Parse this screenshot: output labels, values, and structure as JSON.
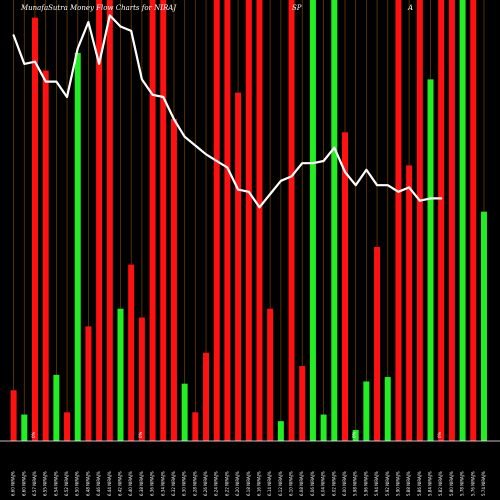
{
  "title": {
    "left": "MunafaSutra  Money Flow  Charts for NIRAJ",
    "middle": "SP",
    "right": "A"
  },
  "colors": {
    "background": "#000000",
    "up": "#22ee22",
    "down": "#ff1111",
    "grid": "#6b3a00",
    "line": "#ffffff"
  },
  "chart_data": {
    "type": "bar",
    "bar_heights_pct": [
      11.5,
      6,
      96,
      84,
      15,
      6.5,
      88,
      26,
      100,
      100,
      30,
      40,
      28,
      100,
      100,
      73,
      13,
      6.5,
      20,
      100,
      100,
      79,
      100,
      100,
      30,
      4.5,
      100,
      17,
      100,
      6,
      100,
      70,
      2.5,
      13.5,
      44,
      14.5,
      100,
      62.5,
      100,
      82,
      100,
      100,
      100,
      100,
      52
    ],
    "bar_colors": [
      "down",
      "up",
      "down",
      "down",
      "up",
      "down",
      "up",
      "down",
      "down",
      "down",
      "up",
      "down",
      "down",
      "down",
      "down",
      "down",
      "up",
      "down",
      "down",
      "down",
      "down",
      "down",
      "down",
      "down",
      "down",
      "up",
      "down",
      "down",
      "up",
      "up",
      "up",
      "down",
      "up",
      "up",
      "down",
      "up",
      "down",
      "down",
      "down",
      "up",
      "down",
      "down",
      "up",
      "down",
      "up"
    ],
    "line_pct": [
      92,
      85.5,
      86,
      81.5,
      81.5,
      78,
      89,
      95,
      85.5,
      96.5,
      94,
      93,
      82,
      78.5,
      78,
      73,
      69,
      67,
      65,
      63.5,
      62,
      57,
      56.5,
      53,
      56,
      59,
      60,
      63,
      63,
      63.5,
      66.5,
      61,
      58,
      61.5,
      58,
      58,
      56.5,
      57.5,
      54.5,
      55,
      55
    ],
    "pct_markers": [
      "0%",
      "0%",
      "0%",
      "0%"
    ],
    "x_labels": [
      "6.60 NIRAJ%",
      "6.60 NIRAJ%",
      "6.57 NIRAJ%",
      "6.55 NIRAJ%",
      "6.54 NIRAJ%",
      "6.52 NIRAJ%",
      "6.50 NIRAJ%",
      "6.48 NIRAJ%",
      "6.46 NIRAJ%",
      "6.44 NIRAJ%",
      "6.42 NIRAJ%",
      "6.40 NIRAJ%",
      "6.38 NIRAJ%",
      "6.36 NIRAJ%",
      "6.34 NIRAJ%",
      "6.32 NIRAJ%",
      "6.30 NIRAJ%",
      "6.28 NIRAJ%",
      "6.26 NIRAJ%",
      "6.24 NIRAJ%",
      "6.22 NIRAJ%",
      "6.20 NIRAJ%",
      "6.18 NIRAJ%",
      "6.16 NIRAJ%",
      "6.14 NIRAJ%",
      "6.12 NIRAJ%",
      "6.10 NIRAJ%",
      "6.08 NIRAJ%",
      "6.06 NIRAJ%",
      "6.04 NIRAJ%",
      "6.02 NIRAJ%",
      "6.00 NIRAJ%",
      "5.98 NIRAJ%",
      "5.96 NIRAJ%",
      "5.94 NIRAJ%",
      "5.92 NIRAJ%",
      "5.90 NIRAJ%",
      "5.88 NIRAJ%",
      "5.86 NIRAJ%",
      "5.84 NIRAJ%",
      "5.82 NIRAJ%",
      "5.80 NIRAJ%",
      "5.78 NIRAJ%",
      "5.76 NIRAJ%",
      "5.74 NIRAJ%"
    ]
  }
}
